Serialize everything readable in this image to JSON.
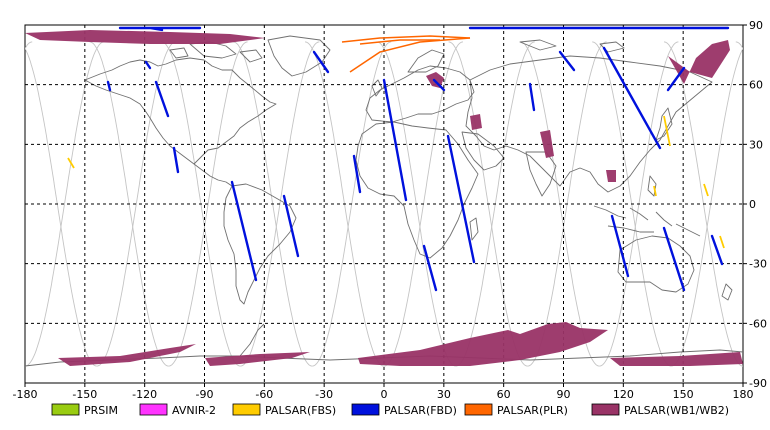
{
  "map": {
    "x_ticks": [
      "-180",
      "-150",
      "-120",
      "-90",
      "-60",
      "-30",
      "0",
      "30",
      "60",
      "90",
      "120",
      "150",
      "180"
    ],
    "y_ticks_right": [
      "90",
      "60",
      "30",
      "0",
      "-30",
      "-60",
      "-90"
    ],
    "y_range": [
      -90,
      90
    ],
    "x_range": [
      -180,
      180
    ]
  },
  "legend": [
    {
      "label": "PRSIM",
      "color": "#99cc11"
    },
    {
      "label": "AVNIR-2",
      "color": "#ff33ff"
    },
    {
      "label": "PALSAR(FBS)",
      "color": "#ffcc00"
    },
    {
      "label": "PALSAR(FBD)",
      "color": "#0011dd"
    },
    {
      "label": "PALSAR(PLR)",
      "color": "#ff6600"
    },
    {
      "label": "PALSAR(WB1/WB2)",
      "color": "#993366"
    }
  ]
}
